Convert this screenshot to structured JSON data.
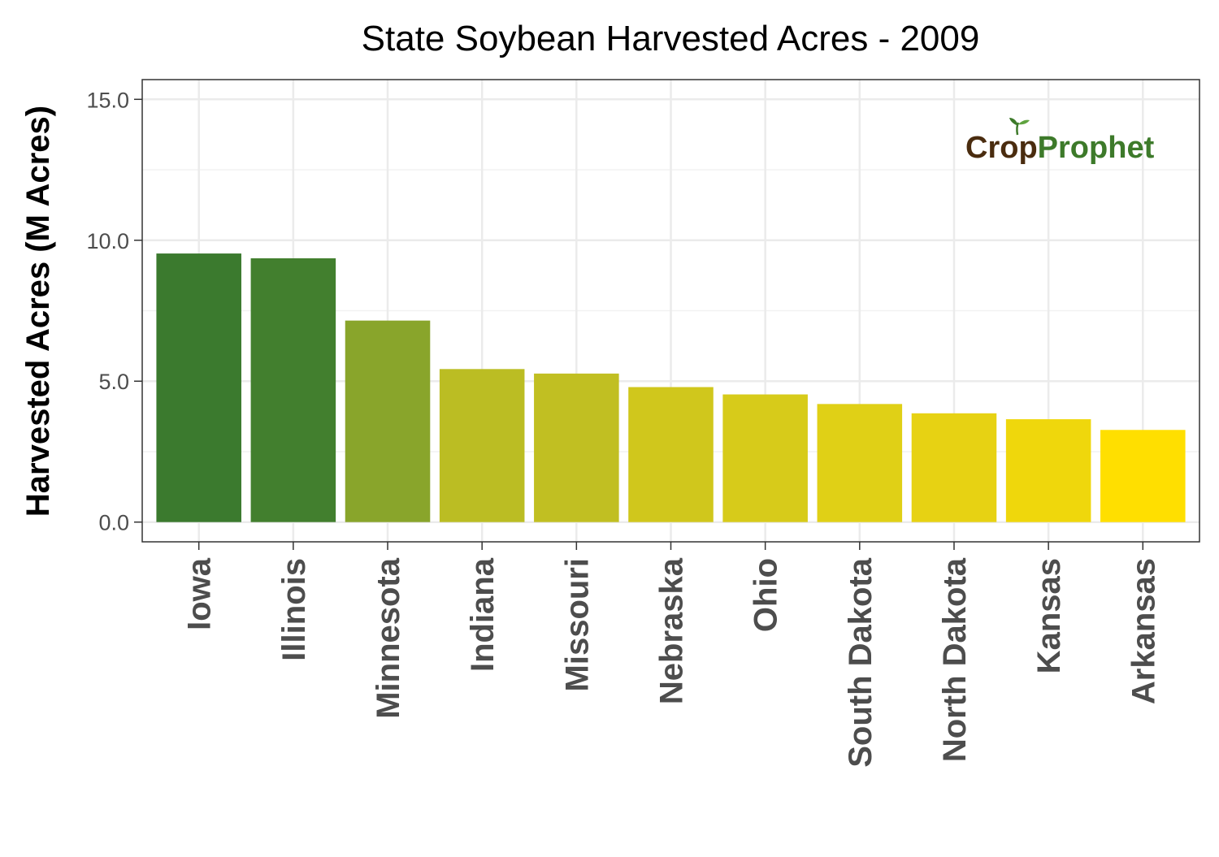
{
  "chart_data": {
    "type": "bar",
    "title": "State Soybean Harvested Acres - 2009",
    "xlabel": "",
    "ylabel": "Harvested Acres (M Acres)",
    "ylim": [
      -0.7,
      15.7
    ],
    "yticks": [
      "0.0",
      "5.0",
      "10.0",
      "15.0"
    ],
    "grid": true,
    "legend": "none",
    "categories": [
      "Iowa",
      "Illinois",
      "Minnesota",
      "Indiana",
      "Missouri",
      "Nebraska",
      "Ohio",
      "South Dakota",
      "North Dakota",
      "Kansas",
      "Arkansas"
    ],
    "values": [
      9.53,
      9.36,
      7.15,
      5.43,
      5.27,
      4.79,
      4.53,
      4.19,
      3.86,
      3.65,
      3.27
    ],
    "colors": [
      "#3b7a2e",
      "#427f2e",
      "#89a52b",
      "#bbbd23",
      "#c1bf22",
      "#d0c71c",
      "#d7cb1a",
      "#e0d016",
      "#e7d213",
      "#efd70c",
      "#ffdf00"
    ]
  },
  "logo": {
    "part1": "Cr",
    "seed": "o",
    "part2": "p",
    "part3": "Prophet"
  },
  "colors": {
    "panel_border": "#333333",
    "grid_major": "#ebebeb",
    "grid_minor": "#f2f2f2",
    "tick": "#333333"
  }
}
